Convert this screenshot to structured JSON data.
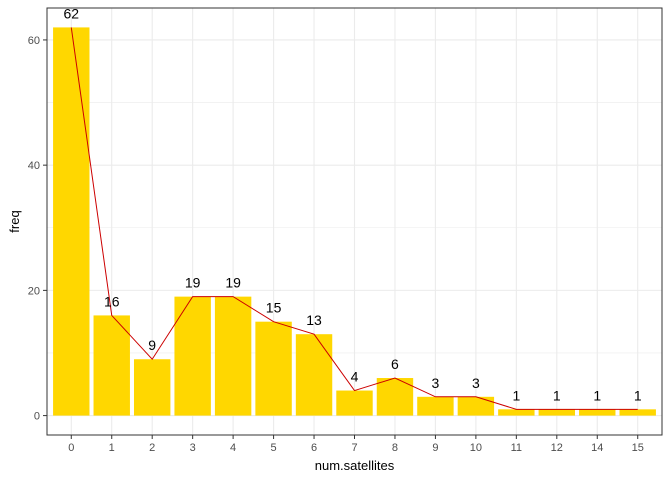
{
  "chart_data": {
    "type": "bar",
    "categories": [
      "0",
      "1",
      "2",
      "3",
      "4",
      "5",
      "6",
      "7",
      "8",
      "9",
      "10",
      "11",
      "12",
      "14",
      "15"
    ],
    "values": [
      62,
      16,
      9,
      19,
      19,
      15,
      13,
      4,
      6,
      3,
      3,
      1,
      1,
      1,
      1
    ],
    "data_labels": [
      "62",
      "16",
      "9",
      "19",
      "19",
      "15",
      "13",
      "4",
      "6",
      "3",
      "3",
      "1",
      "1",
      "1",
      "1"
    ],
    "overlay": {
      "type": "line",
      "values": [
        62,
        16,
        9,
        19,
        19,
        15,
        13,
        4,
        6,
        3,
        3,
        1,
        1,
        1,
        1
      ]
    },
    "xlabel": "num.satellites",
    "ylabel": "freq",
    "ylim": [
      -3.1,
      65.1
    ],
    "yticks": [
      0,
      20,
      40,
      60
    ],
    "ytick_labels": [
      "0",
      "20",
      "40",
      "60"
    ],
    "grid": true,
    "legend": "none",
    "colors": {
      "bar": "#FFD700",
      "line": "#CC0000",
      "grid": "#EBEBEB",
      "border": "#333333",
      "tick": "#4D4D4D"
    }
  }
}
